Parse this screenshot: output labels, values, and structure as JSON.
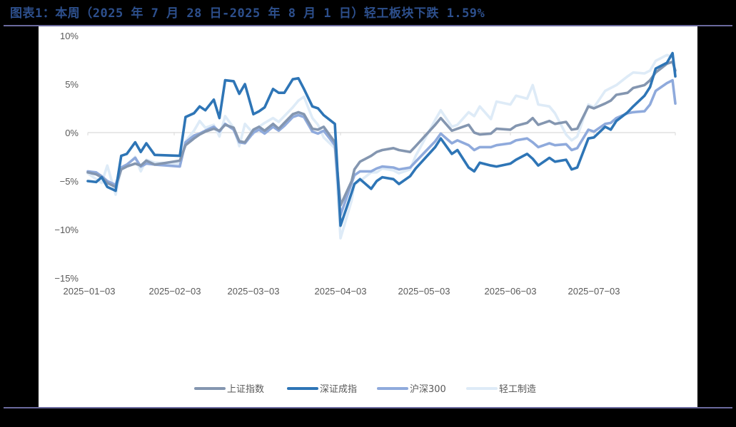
{
  "title": "图表1：本周（2025 年 7 月 28 日-2025 年 8 月 1 日）轻工板块下跌 1.59%",
  "colors": {
    "background": "#000000",
    "rule": "#6b6a9e",
    "title": "#2d4f8c",
    "zero_line": "#d9d9d9",
    "axis_text": "#595959"
  },
  "chart_data": {
    "type": "line",
    "title": "图表1：本周（2025 年 7 月 28 日-2025 年 8 月 1 日）轻工板块下跌 1.59%",
    "xlabel": "",
    "ylabel": "",
    "ylim": [
      -15,
      10
    ],
    "yticks": [
      "10%",
      "5%",
      "0%",
      "-5%",
      "-10%",
      "-15%"
    ],
    "ytick_values": [
      10,
      5,
      0,
      -5,
      -10,
      -15
    ],
    "xticks": [
      "2025-01-03",
      "2025-02-03",
      "2025-03-03",
      "2025-04-03",
      "2025-05-03",
      "2025-06-03",
      "2025-07-03"
    ],
    "grid": false,
    "legend_position": "bottom",
    "x": [
      "01-03",
      "01-06",
      "01-08",
      "01-10",
      "01-13",
      "01-15",
      "01-17",
      "01-20",
      "01-22",
      "01-24",
      "01-27",
      "02-05",
      "02-07",
      "02-10",
      "02-12",
      "02-14",
      "02-17",
      "02-19",
      "02-21",
      "02-24",
      "02-26",
      "02-28",
      "03-03",
      "03-05",
      "03-07",
      "03-10",
      "03-12",
      "03-14",
      "03-17",
      "03-19",
      "03-21",
      "03-24",
      "03-26",
      "03-28",
      "04-01",
      "04-03",
      "04-07",
      "04-08",
      "04-10",
      "04-14",
      "04-16",
      "04-18",
      "04-22",
      "04-24",
      "04-28",
      "04-30",
      "05-07",
      "05-09",
      "05-13",
      "05-15",
      "05-19",
      "05-21",
      "05-23",
      "05-27",
      "05-29",
      "06-03",
      "06-05",
      "06-09",
      "06-11",
      "06-13",
      "06-17",
      "06-19",
      "06-23",
      "06-25",
      "06-27",
      "07-01",
      "07-03",
      "07-07",
      "07-09",
      "07-11",
      "07-15",
      "07-17",
      "07-21",
      "07-23",
      "07-25",
      "07-29",
      "07-31",
      "08-01"
    ],
    "series": [
      {
        "name": "上证指数",
        "color": "#8496b0",
        "values": [
          -4.1,
          -4.3,
          -4.6,
          -5.2,
          -5.6,
          -3.8,
          -3.5,
          -3.2,
          -3.4,
          -2.9,
          -3.3,
          -2.9,
          -1.3,
          -0.6,
          -0.2,
          0.1,
          0.4,
          0.2,
          0.8,
          0.5,
          -0.9,
          -1.0,
          0.3,
          0.6,
          0.2,
          0.9,
          0.4,
          1.0,
          1.9,
          2.1,
          1.9,
          0.4,
          0.3,
          0.6,
          -1.0,
          -7.5,
          -5.0,
          -3.8,
          -3.0,
          -2.4,
          -2.0,
          -1.8,
          -1.6,
          -1.8,
          -2.0,
          -1.4,
          0.8,
          1.5,
          0.2,
          0.4,
          0.8,
          0.0,
          -0.2,
          -0.1,
          0.4,
          0.3,
          0.7,
          1.0,
          1.5,
          0.8,
          1.2,
          0.9,
          1.1,
          0.3,
          0.4,
          2.7,
          2.5,
          3.0,
          3.3,
          3.9,
          4.1,
          4.6,
          4.9,
          5.4,
          6.2,
          7.1,
          7.3,
          6.4
        ]
      },
      {
        "name": "深证成指",
        "color": "#2e75b6",
        "values": [
          -5.0,
          -5.1,
          -4.6,
          -5.6,
          -6.0,
          -2.4,
          -2.2,
          -1.0,
          -2.0,
          -1.1,
          -2.3,
          -2.4,
          1.6,
          2.0,
          2.7,
          2.3,
          3.4,
          1.5,
          5.4,
          5.3,
          4.0,
          5.0,
          1.9,
          2.2,
          2.6,
          4.5,
          4.1,
          4.1,
          5.5,
          5.6,
          4.5,
          2.7,
          2.5,
          1.8,
          0.9,
          -9.6,
          -6.2,
          -5.3,
          -4.8,
          -5.8,
          -5.0,
          -4.6,
          -4.8,
          -5.3,
          -4.5,
          -3.7,
          -1.5,
          -0.6,
          -2.2,
          -1.8,
          -3.6,
          -4.0,
          -3.1,
          -3.4,
          -3.5,
          -3.2,
          -2.8,
          -2.2,
          -2.7,
          -3.4,
          -2.6,
          -3.0,
          -2.8,
          -3.8,
          -3.6,
          -0.6,
          -0.5,
          0.6,
          0.3,
          1.2,
          2.1,
          2.7,
          3.8,
          4.7,
          6.6,
          7.2,
          8.2,
          5.8
        ]
      },
      {
        "name": "沪深300",
        "color": "#8faadc",
        "values": [
          -4.0,
          -4.1,
          -4.5,
          -5.0,
          -5.4,
          -3.6,
          -3.3,
          -2.6,
          -3.5,
          -3.2,
          -3.3,
          -3.5,
          -1.0,
          -0.3,
          -0.1,
          0.2,
          0.6,
          0.1,
          0.9,
          0.3,
          -1.0,
          -1.1,
          0.0,
          0.3,
          -0.1,
          0.6,
          0.2,
          0.7,
          1.6,
          1.8,
          1.6,
          0.1,
          -0.1,
          0.2,
          -1.3,
          -8.5,
          -5.2,
          -4.4,
          -4.0,
          -4.0,
          -3.7,
          -3.5,
          -3.6,
          -3.8,
          -3.6,
          -3.0,
          -0.9,
          -0.1,
          -1.1,
          -0.8,
          -1.3,
          -1.8,
          -1.5,
          -1.5,
          -1.3,
          -1.1,
          -0.8,
          -0.6,
          -1.0,
          -1.5,
          -1.1,
          -1.3,
          -1.2,
          -1.8,
          -1.6,
          0.3,
          0.1,
          0.9,
          1.0,
          1.5,
          2.0,
          2.1,
          2.2,
          2.9,
          4.3,
          5.1,
          5.4,
          3.0
        ]
      },
      {
        "name": "轻工制造",
        "color": "#deebf7",
        "values": [
          -4.2,
          -4.8,
          -5.2,
          -3.4,
          -6.4,
          -3.7,
          -3.4,
          -2.5,
          -4.0,
          -2.8,
          -3.1,
          -3.2,
          -0.9,
          0.2,
          1.2,
          0.5,
          0.8,
          -0.4,
          1.7,
          0.5,
          -1.4,
          0.9,
          -0.1,
          0.6,
          1.0,
          1.5,
          1.1,
          1.7,
          2.6,
          3.3,
          3.7,
          1.5,
          0.8,
          -0.5,
          -1.6,
          -10.9,
          -7.0,
          -5.3,
          -5.0,
          -4.1,
          -4.1,
          -3.7,
          -3.9,
          -4.2,
          -3.8,
          -2.4,
          1.3,
          2.3,
          0.6,
          0.8,
          2.1,
          1.7,
          2.7,
          1.4,
          3.2,
          2.9,
          3.8,
          3.5,
          4.9,
          2.9,
          2.7,
          2.0,
          -0.2,
          -0.8,
          -0.4,
          2.9,
          2.6,
          4.3,
          4.6,
          4.9,
          5.8,
          6.2,
          6.1,
          6.4,
          7.4,
          8.0,
          7.8,
          6.2
        ]
      }
    ]
  },
  "legend": [
    {
      "label": "上证指数",
      "color": "#8496b0"
    },
    {
      "label": "深证成指",
      "color": "#2e75b6"
    },
    {
      "label": "沪深300",
      "color": "#8faadc"
    },
    {
      "label": "轻工制造",
      "color": "#deebf7"
    }
  ]
}
